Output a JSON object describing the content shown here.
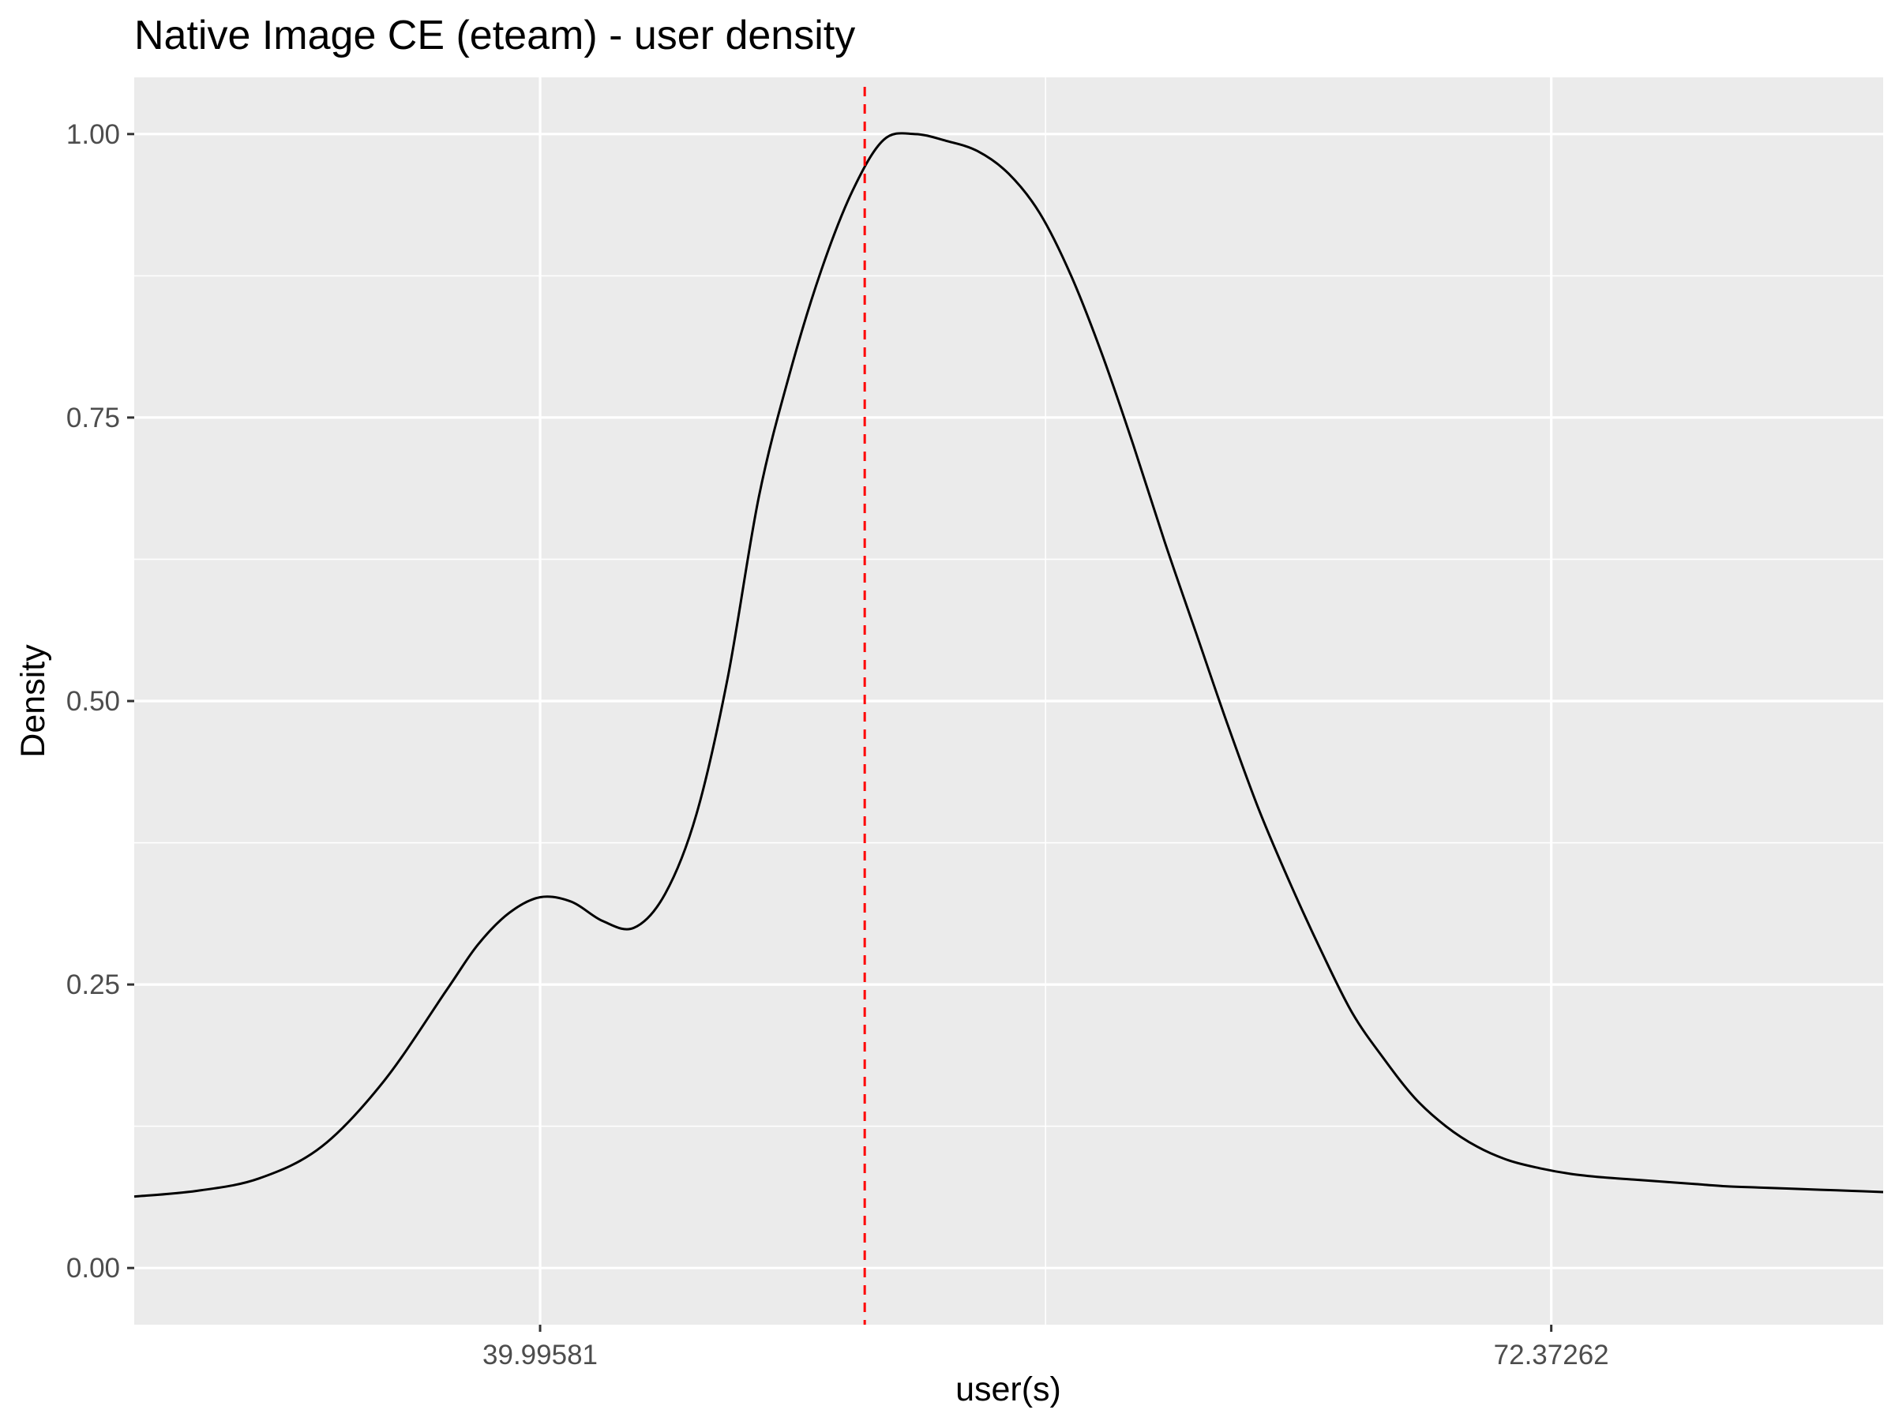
{
  "chart_data": {
    "type": "line",
    "title": "Native Image CE (eteam) - user density",
    "xlabel": "user(s)",
    "ylabel": "Density",
    "xlim": [
      27,
      83
    ],
    "ylim": [
      -0.05,
      1.05
    ],
    "x_ticks": [
      39.99581,
      72.37262
    ],
    "x_tick_labels": [
      "39.99581",
      "72.37262"
    ],
    "x_minor_grid": [
      24.0,
      56.18,
      88.56
    ],
    "y_ticks": [
      0,
      0.25,
      0.5,
      0.75,
      1.0
    ],
    "y_tick_labels": [
      "0.00",
      "0.25",
      "0.50",
      "0.75",
      "1.00"
    ],
    "y_minor_grid": [
      0.125,
      0.375,
      0.625,
      0.875
    ],
    "grid": true,
    "colors": {
      "panel": "#ebebeb",
      "grid": "#ffffff",
      "line": "#000000",
      "vline": "#ff0000"
    },
    "series": [
      {
        "x": [
          27.0,
          29.0,
          31.0,
          33.0,
          35.0,
          37.0,
          38.0,
          39.0,
          40.0,
          41.0,
          42.0,
          43.0,
          44.0,
          45.0,
          46.0,
          47.0,
          48.0,
          49.0,
          50.0,
          51.0,
          52.0,
          53.0,
          54.0,
          55.0,
          56.0,
          57.0,
          58.0,
          59.0,
          60.0,
          61.0,
          62.0,
          63.0,
          64.0,
          65.0,
          66.0,
          67.0,
          68.0,
          69.0,
          70.0,
          71.0,
          72.0,
          73.0,
          74.0,
          75.0,
          76.0,
          77.0,
          78.0,
          79.0,
          80.0,
          81.0,
          82.0,
          83.0
        ],
        "y": [
          0.063,
          0.068,
          0.079,
          0.107,
          0.165,
          0.245,
          0.285,
          0.313,
          0.327,
          0.323,
          0.306,
          0.3,
          0.33,
          0.4,
          0.52,
          0.68,
          0.79,
          0.88,
          0.95,
          0.995,
          1.0,
          0.994,
          0.985,
          0.965,
          0.93,
          0.875,
          0.805,
          0.725,
          0.64,
          0.56,
          0.48,
          0.405,
          0.34,
          0.28,
          0.225,
          0.185,
          0.15,
          0.125,
          0.107,
          0.095,
          0.088,
          0.083,
          0.08,
          0.078,
          0.076,
          0.074,
          0.072,
          0.071,
          0.07,
          0.069,
          0.068,
          0.067
        ]
      }
    ],
    "vline": {
      "x": 50.39,
      "style": "dashed"
    }
  }
}
